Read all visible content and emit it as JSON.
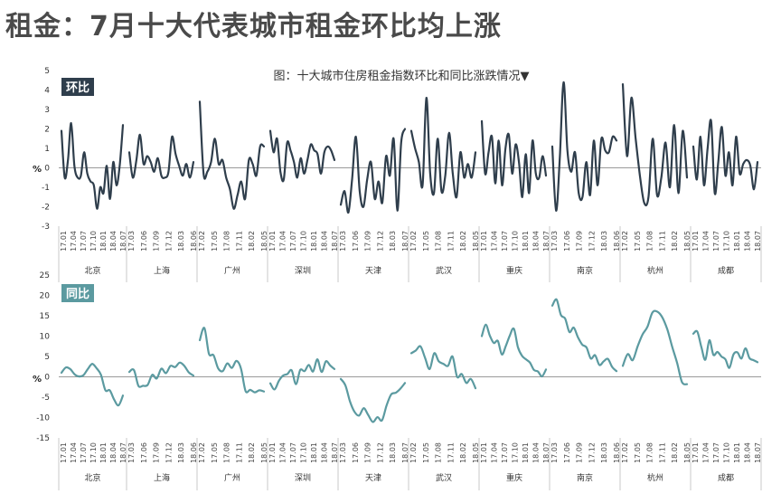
{
  "title": "租金：7月十大代表城市租金环比均上涨",
  "chart_data": [
    {
      "type": "line",
      "panel": "环比",
      "subtitle": "图：十大城市住房租金指数环比和同比涨跌情况▼",
      "ylabel": "%",
      "ylim": [
        -3,
        5
      ],
      "yticks": [
        5,
        4,
        3,
        2,
        1,
        0,
        -1,
        -2,
        -3
      ],
      "color": "#2f3e4c",
      "groups": [
        {
          "city": "北京",
          "ticks": [
            "17.01",
            "17.04",
            "17.07",
            "17.10",
            "18.01",
            "18.04",
            "18.07"
          ],
          "values": [
            1.9,
            -0.5,
            0.4,
            2.3,
            0.1,
            -0.5,
            -0.4,
            0.8,
            -0.3,
            -0.7,
            -0.9,
            -2.1,
            -1.0,
            -1.3,
            0.1,
            -1.6,
            0.3,
            -0.9,
            0.1,
            2.2
          ]
        },
        {
          "city": "上海",
          "ticks": [
            "17.03",
            "17.06",
            "17.09",
            "17.12",
            "18.03",
            "18.06"
          ],
          "values": [
            0.8,
            -0.5,
            0.4,
            1.7,
            0.2,
            0.6,
            0.3,
            -0.2,
            0.5,
            -0.4,
            -0.5,
            -0.2,
            1.6,
            0.7,
            0.1,
            -0.4,
            0.2,
            -0.5,
            0.3
          ]
        },
        {
          "city": "广州",
          "ticks": [
            "17.02",
            "17.05",
            "17.08",
            "17.11",
            "18.02",
            "18.05"
          ],
          "values": [
            3.4,
            -0.3,
            -0.2,
            0.3,
            1.5,
            0.2,
            0.4,
            -0.5,
            -1.1,
            -2.1,
            -1.4,
            -0.7,
            -1.6,
            0.4,
            0.2,
            -0.4,
            1.1,
            1.1
          ]
        },
        {
          "city": "深圳",
          "ticks": [
            "17.01",
            "17.04",
            "17.07",
            "17.10",
            "18.01",
            "18.04",
            "18.07"
          ],
          "values": [
            1.9,
            0.8,
            1.5,
            -0.2,
            -0.6,
            1.3,
            0.9,
            0.3,
            -0.5,
            0.5,
            -0.3,
            0.4,
            1.2,
            0.9,
            0.7,
            -0.3,
            0.8,
            1.1,
            0.9,
            0.4
          ]
        },
        {
          "city": "天津",
          "ticks": [
            "17.03",
            "17.06",
            "17.09",
            "17.12",
            "18.03",
            "18.07"
          ],
          "values": [
            -1.9,
            -1.2,
            -2.3,
            -0.6,
            1.6,
            -1.2,
            -2.0,
            -0.6,
            0.3,
            -1.6,
            -0.7,
            -1.8,
            0.6,
            -0.4,
            1.5,
            -2.2,
            1.3,
            2.0
          ]
        },
        {
          "city": "武汉",
          "ticks": [
            "17.02",
            "17.05",
            "17.08",
            "17.11",
            "18.02",
            "18.05"
          ],
          "values": [
            1.9,
            1.0,
            0.3,
            -0.9,
            3.6,
            -0.3,
            -1.3,
            1.5,
            -1.2,
            -0.4,
            1.8,
            -0.3,
            -1.5,
            0.8,
            -0.5,
            0.2,
            -0.5,
            0.8
          ]
        },
        {
          "city": "重庆",
          "ticks": [
            "17.01",
            "17.04",
            "17.07",
            "17.10",
            "18.01",
            "18.04",
            "18.07"
          ],
          "values": [
            2.4,
            -0.3,
            0.8,
            1.6,
            -0.8,
            1.4,
            -0.9,
            1.0,
            1.7,
            -0.3,
            1.2,
            0.3,
            -1.5,
            0.7,
            -1.3,
            1.4,
            -0.3,
            -0.5,
            0.6,
            -0.4
          ]
        },
        {
          "city": "南京",
          "ticks": [
            "17.03",
            "17.06",
            "17.09",
            "17.12",
            "18.03",
            "18.06"
          ],
          "values": [
            1.1,
            -2.2,
            0.6,
            4.4,
            0.9,
            -0.2,
            0.8,
            -1.3,
            -1.5,
            0.3,
            -1.4,
            1.4,
            -0.9,
            1.5,
            0.9,
            0.8,
            1.6,
            1.4
          ]
        },
        {
          "city": "杭州",
          "ticks": [
            "17.02",
            "17.05",
            "17.08",
            "17.11",
            "18.02",
            "18.05"
          ],
          "values": [
            4.3,
            0.6,
            3.6,
            1.5,
            -0.4,
            -1.8,
            -1.5,
            1.5,
            -1.4,
            -0.5,
            1.3,
            -1.0,
            2.2,
            -1.3,
            1.9,
            -0.5
          ]
        },
        {
          "city": "成都",
          "ticks": [
            "17.01",
            "17.04",
            "17.07",
            "17.10",
            "18.01",
            "18.04",
            "18.07"
          ],
          "values": [
            1.1,
            -0.6,
            1.6,
            -0.9,
            1.0,
            2.4,
            -1.3,
            0.3,
            2.1,
            -0.4,
            0.8,
            -0.9,
            1.6,
            -0.3,
            0.2,
            0.4,
            0.1,
            -1.1,
            0.3
          ]
        }
      ]
    },
    {
      "type": "line",
      "panel": "同比",
      "ylabel": "%",
      "ylim": [
        -15,
        25
      ],
      "yticks": [
        25,
        20,
        15,
        10,
        5,
        0,
        -5,
        -10,
        -15
      ],
      "color": "#5b9aa0",
      "groups": [
        {
          "city": "北京",
          "ticks": [
            "17.01",
            "17.04",
            "17.07",
            "17.10",
            "18.01",
            "18.04",
            "18.07"
          ],
          "values": [
            1.0,
            2.3,
            1.9,
            0.6,
            0.1,
            0.4,
            1.9,
            3.2,
            2.1,
            0.5,
            -3.3,
            -3.3,
            -5.6,
            -7.0,
            -4.6
          ]
        },
        {
          "city": "上海",
          "ticks": [
            "17.03",
            "17.06",
            "17.09",
            "17.12",
            "18.03",
            "18.06"
          ],
          "values": [
            1.2,
            1.7,
            -2.2,
            -2.2,
            -2.0,
            0.5,
            -0.4,
            2.0,
            0.9,
            2.7,
            2.4,
            3.5,
            2.7,
            1.1,
            0.3
          ]
        },
        {
          "city": "广州",
          "ticks": [
            "17.02",
            "17.05",
            "17.08",
            "17.11",
            "18.02",
            "18.05"
          ],
          "values": [
            9.0,
            12.0,
            5.7,
            5.3,
            2.1,
            1.4,
            3.3,
            2.2,
            3.9,
            2.0,
            -3.5,
            -3.2,
            -3.8,
            -3.3,
            -3.6
          ]
        },
        {
          "city": "深圳",
          "ticks": [
            "17.01",
            "17.04",
            "17.07",
            "17.10",
            "18.01",
            "18.04",
            "18.07"
          ],
          "values": [
            -1.6,
            -3.1,
            -1.0,
            0.3,
            0.7,
            1.6,
            -1.8,
            1.7,
            1.4,
            2.9,
            1.3,
            4.3,
            1.2,
            3.8,
            2.8,
            1.9
          ]
        },
        {
          "city": "天津",
          "ticks": [
            "17.03",
            "17.06",
            "17.09",
            "17.12",
            "18.03",
            "18.07"
          ],
          "values": [
            -0.5,
            -2.1,
            -6.0,
            -8.6,
            -9.5,
            -7.7,
            -9.4,
            -11.1,
            -9.9,
            -10.7,
            -7.0,
            -4.3,
            -3.9,
            -2.9,
            -1.5
          ]
        },
        {
          "city": "武汉",
          "ticks": [
            "17.02",
            "17.05",
            "17.08",
            "17.11",
            "18.02",
            "18.05"
          ],
          "values": [
            5.8,
            6.5,
            7.5,
            4.7,
            1.9,
            5.8,
            3.8,
            3.2,
            2.7,
            5.0,
            0.0,
            0.7,
            -1.5,
            -0.5,
            -2.8
          ]
        },
        {
          "city": "重庆",
          "ticks": [
            "17.01",
            "17.04",
            "17.07",
            "17.10",
            "18.01",
            "18.04",
            "18.07"
          ],
          "values": [
            10.0,
            12.8,
            10.1,
            8.3,
            8.8,
            5.5,
            7.6,
            10.2,
            11.8,
            7.3,
            5.2,
            4.3,
            3.5,
            1.7,
            1.3,
            0.1,
            1.8
          ]
        },
        {
          "city": "南京",
          "ticks": [
            "17.03",
            "17.06",
            "17.09",
            "17.12",
            "18.03",
            "18.06"
          ],
          "values": [
            17.5,
            19.0,
            15.2,
            14.3,
            11.0,
            12.1,
            9.7,
            7.9,
            7.2,
            4.5,
            5.3,
            2.9,
            3.8,
            4.4,
            2.4,
            1.4
          ]
        },
        {
          "city": "杭州",
          "ticks": [
            "17.02",
            "17.05",
            "17.08",
            "17.11",
            "18.02",
            "18.05"
          ],
          "values": [
            2.7,
            5.6,
            4.1,
            7.5,
            10.4,
            12.3,
            15.8,
            16.0,
            14.6,
            11.7,
            7.4,
            3.4,
            -1.3,
            -1.8
          ]
        },
        {
          "city": "成都",
          "ticks": [
            "17.01",
            "17.04",
            "17.07",
            "17.10",
            "18.01",
            "18.04",
            "18.07"
          ],
          "values": [
            10.6,
            11.1,
            7.3,
            4.2,
            9.0,
            5.4,
            6.1,
            5.0,
            4.3,
            2.2,
            5.5,
            6.0,
            4.5,
            7.0,
            4.6,
            4.1,
            3.6
          ]
        }
      ]
    }
  ]
}
